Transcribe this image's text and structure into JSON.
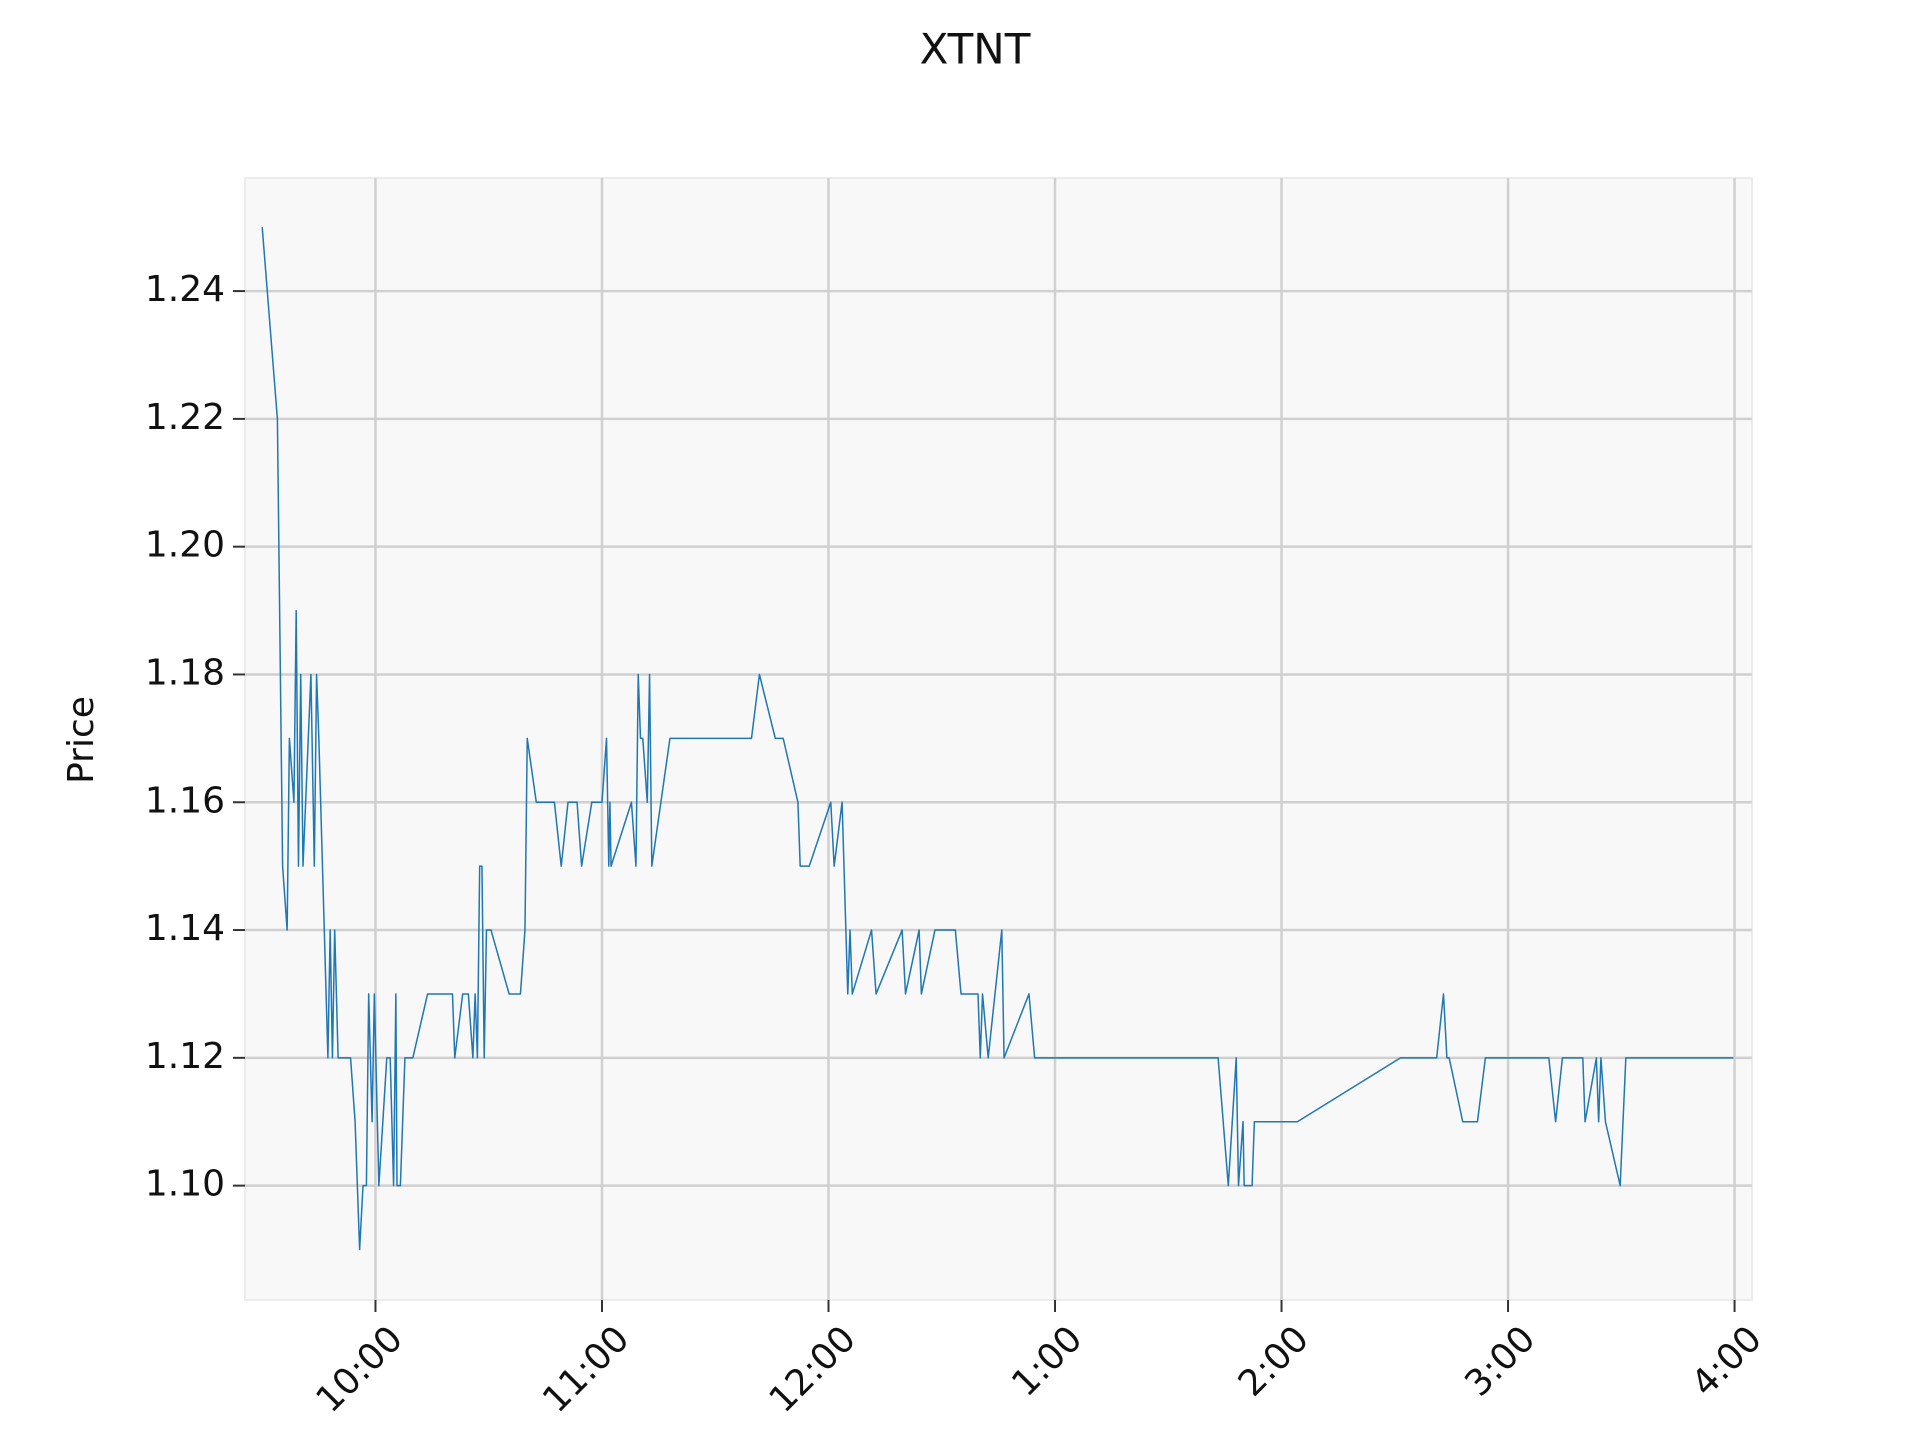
{
  "chart_data": {
    "type": "line",
    "title": "XTNT",
    "ylabel": "Price",
    "color": "#1f77b4",
    "grid": true,
    "x": [
      9.5,
      9.567,
      9.59,
      9.61,
      9.62,
      9.64,
      9.65,
      9.66,
      9.67,
      9.68,
      9.715,
      9.73,
      9.74,
      9.75,
      9.79,
      9.8,
      9.81,
      9.82,
      9.835,
      9.89,
      9.91,
      9.93,
      9.945,
      9.96,
      9.97,
      9.985,
      9.995,
      10.015,
      10.05,
      10.065,
      10.08,
      10.09,
      10.095,
      10.11,
      10.13,
      10.165,
      10.23,
      10.34,
      10.35,
      10.385,
      10.41,
      10.43,
      10.44,
      10.45,
      10.46,
      10.47,
      10.48,
      10.49,
      10.51,
      10.59,
      10.64,
      10.66,
      10.67,
      10.71,
      10.79,
      10.82,
      10.85,
      10.89,
      10.91,
      10.955,
      11.0,
      11.02,
      11.03,
      11.035,
      11.04,
      11.13,
      11.15,
      11.16,
      11.17,
      11.18,
      11.2,
      11.21,
      11.22,
      11.3,
      11.66,
      11.695,
      11.765,
      11.8,
      11.865,
      11.875,
      11.915,
      12.01,
      12.025,
      12.06,
      12.085,
      12.095,
      12.105,
      12.19,
      12.21,
      12.325,
      12.34,
      12.4,
      12.41,
      12.47,
      12.56,
      12.585,
      12.66,
      12.67,
      12.68,
      12.705,
      12.735,
      12.765,
      12.775,
      12.885,
      12.91,
      13.72,
      13.765,
      13.8,
      13.81,
      13.83,
      13.835,
      13.87,
      13.88,
      14.07,
      14.525,
      14.685,
      14.715,
      14.73,
      14.74,
      14.8,
      14.865,
      14.9,
      15.18,
      15.21,
      15.24,
      15.33,
      15.34,
      15.39,
      15.4,
      15.41,
      15.43,
      15.495,
      15.52,
      15.995
    ],
    "values": [
      1.25,
      1.22,
      1.15,
      1.14,
      1.17,
      1.16,
      1.19,
      1.15,
      1.18,
      1.15,
      1.18,
      1.15,
      1.18,
      1.17,
      1.12,
      1.14,
      1.12,
      1.14,
      1.12,
      1.12,
      1.11,
      1.09,
      1.1,
      1.1,
      1.13,
      1.11,
      1.13,
      1.1,
      1.12,
      1.12,
      1.1,
      1.13,
      1.1,
      1.1,
      1.12,
      1.12,
      1.13,
      1.13,
      1.12,
      1.13,
      1.13,
      1.12,
      1.13,
      1.12,
      1.15,
      1.15,
      1.12,
      1.14,
      1.14,
      1.13,
      1.13,
      1.14,
      1.17,
      1.16,
      1.16,
      1.15,
      1.16,
      1.16,
      1.15,
      1.16,
      1.16,
      1.17,
      1.15,
      1.16,
      1.15,
      1.16,
      1.15,
      1.18,
      1.17,
      1.17,
      1.16,
      1.18,
      1.15,
      1.17,
      1.17,
      1.18,
      1.17,
      1.17,
      1.16,
      1.15,
      1.15,
      1.16,
      1.15,
      1.16,
      1.13,
      1.14,
      1.13,
      1.14,
      1.13,
      1.14,
      1.13,
      1.14,
      1.13,
      1.14,
      1.14,
      1.13,
      1.13,
      1.12,
      1.13,
      1.12,
      1.13,
      1.14,
      1.12,
      1.13,
      1.12,
      1.12,
      1.1,
      1.12,
      1.1,
      1.11,
      1.1,
      1.1,
      1.11,
      1.11,
      1.12,
      1.12,
      1.13,
      1.12,
      1.12,
      1.11,
      1.11,
      1.12,
      1.12,
      1.11,
      1.12,
      1.12,
      1.11,
      1.12,
      1.11,
      1.12,
      1.11,
      1.1,
      1.12,
      1.12
    ],
    "xlim": [
      9.424,
      16.077
    ],
    "ylim": [
      1.0821,
      1.2577
    ],
    "xticks": [
      {
        "value": 10,
        "label": "10:00"
      },
      {
        "value": 11,
        "label": "11:00"
      },
      {
        "value": 12,
        "label": "12:00"
      },
      {
        "value": 13,
        "label": "1:00"
      },
      {
        "value": 14,
        "label": "2:00"
      },
      {
        "value": 15,
        "label": "3:00"
      },
      {
        "value": 16,
        "label": "4:00"
      }
    ],
    "yticks": [
      {
        "value": 1.1,
        "label": "1.10"
      },
      {
        "value": 1.12,
        "label": "1.12"
      },
      {
        "value": 1.14,
        "label": "1.14"
      },
      {
        "value": 1.16,
        "label": "1.16"
      },
      {
        "value": 1.18,
        "label": "1.18"
      },
      {
        "value": 1.2,
        "label": "1.20"
      },
      {
        "value": 1.22,
        "label": "1.22"
      },
      {
        "value": 1.24,
        "label": "1.24"
      }
    ]
  }
}
